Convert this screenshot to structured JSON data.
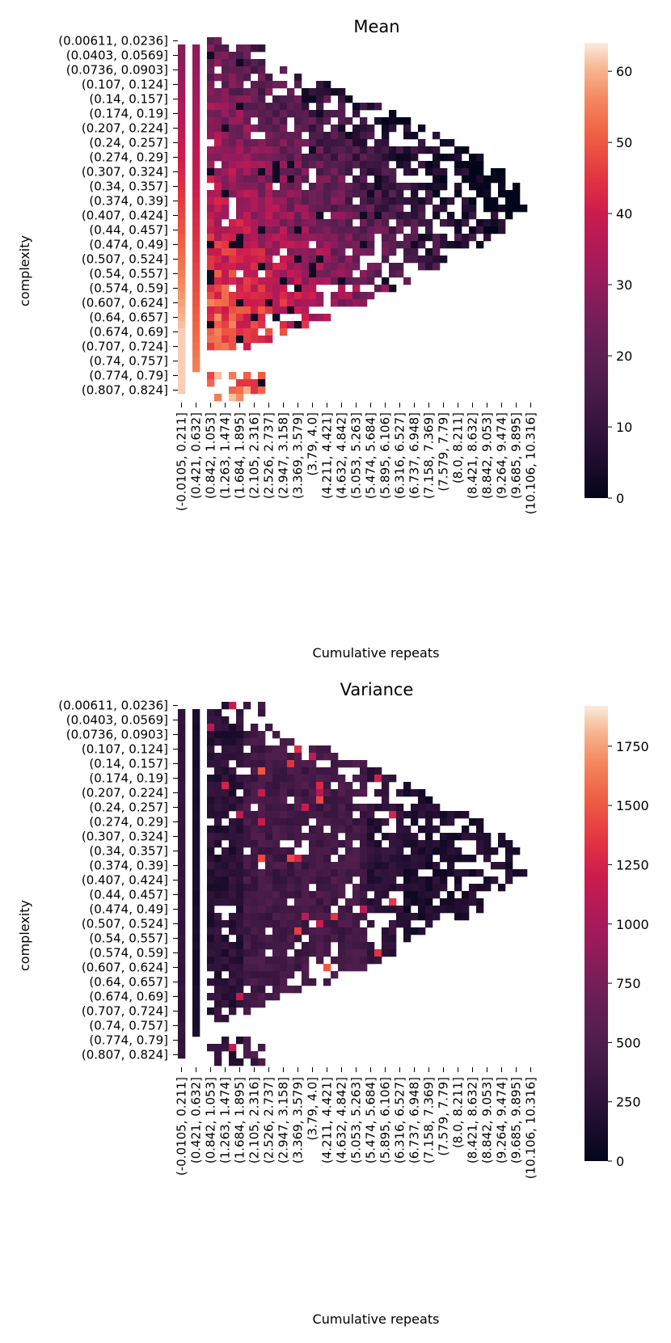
{
  "figure_caption": "",
  "chart_data": [
    {
      "type": "heatmap",
      "title": "Mean",
      "xlabel": "Cumulative repeats",
      "ylabel": "complexity",
      "colorbar": {
        "min": 0,
        "max": 64,
        "ticks": [
          0,
          10,
          20,
          30,
          40,
          50,
          60
        ],
        "colormap": "rocket"
      },
      "y_tick_labels": [
        "(0.00611, 0.0236]",
        "(0.0403, 0.0569]",
        "(0.0736, 0.0903]",
        "(0.107, 0.124]",
        "(0.14, 0.157]",
        "(0.174, 0.19]",
        "(0.207, 0.224]",
        "(0.24, 0.257]",
        "(0.274, 0.29]",
        "(0.307, 0.324]",
        "(0.34, 0.357]",
        "(0.374, 0.39]",
        "(0.407, 0.424]",
        "(0.44, 0.457]",
        "(0.474, 0.49]",
        "(0.507, 0.524]",
        "(0.54, 0.557]",
        "(0.574, 0.59]",
        "(0.607, 0.624]",
        "(0.64, 0.657]",
        "(0.674, 0.69]",
        "(0.707, 0.724]",
        "(0.74, 0.757]",
        "(0.774, 0.79]",
        "(0.807, 0.824]"
      ],
      "x_tick_labels": [
        "(-0.0105, 0.211]",
        "(0.421, 0.632]",
        "(0.842, 1.053]",
        "(1.263, 1.474]",
        "(1.684, 1.895]",
        "(2.105, 2.316]",
        "(2.526, 2.737]",
        "(2.947, 3.158]",
        "(3.369, 3.579]",
        "(3.79, 4.0]",
        "(4.211, 4.421]",
        "(4.632, 4.842]",
        "(5.053, 5.263]",
        "(5.474, 5.684]",
        "(5.895, 6.106]",
        "(6.316, 6.527]",
        "(6.737, 6.948]",
        "(7.158, 7.369]",
        "(7.579, 7.79]",
        "(8.0, 8.211]",
        "(8.421, 8.632]",
        "(8.842, 9.053]",
        "(9.264, 9.474]",
        "(9.685, 9.895]",
        "(10.106, 10.316]"
      ],
      "n_rows": 50,
      "n_cols": 50,
      "cell_value_description": "approximate mean per complexity/repeat bin; peak ~60 at high complexity and low repeats"
    },
    {
      "type": "heatmap",
      "title": "Variance",
      "xlabel": "Cumulative repeats",
      "ylabel": "complexity",
      "colorbar": {
        "min": 0,
        "max": 1920,
        "ticks": [
          0,
          250,
          500,
          750,
          1000,
          1250,
          1500,
          1750
        ],
        "colormap": "rocket"
      },
      "y_tick_labels": [
        "(0.00611, 0.0236]",
        "(0.0403, 0.0569]",
        "(0.0736, 0.0903]",
        "(0.107, 0.124]",
        "(0.14, 0.157]",
        "(0.174, 0.19]",
        "(0.207, 0.224]",
        "(0.24, 0.257]",
        "(0.274, 0.29]",
        "(0.307, 0.324]",
        "(0.34, 0.357]",
        "(0.374, 0.39]",
        "(0.407, 0.424]",
        "(0.44, 0.457]",
        "(0.474, 0.49]",
        "(0.507, 0.524]",
        "(0.54, 0.557]",
        "(0.574, 0.59]",
        "(0.607, 0.624]",
        "(0.64, 0.657]",
        "(0.674, 0.69]",
        "(0.707, 0.724]",
        "(0.74, 0.757]",
        "(0.774, 0.79]",
        "(0.807, 0.824]"
      ],
      "x_tick_labels": [
        "(-0.0105, 0.211]",
        "(0.421, 0.632]",
        "(0.842, 1.053]",
        "(1.263, 1.474]",
        "(1.684, 1.895]",
        "(2.105, 2.316]",
        "(2.526, 2.737]",
        "(2.947, 3.158]",
        "(3.369, 3.579]",
        "(3.79, 4.0]",
        "(4.211, 4.421]",
        "(4.632, 4.842]",
        "(5.053, 5.263]",
        "(5.474, 5.684]",
        "(5.895, 6.106]",
        "(6.316, 6.527]",
        "(6.737, 6.948]",
        "(7.158, 7.369]",
        "(7.579, 7.79]",
        "(8.0, 8.211]",
        "(8.421, 8.632]",
        "(8.842, 9.053]",
        "(9.264, 9.474]",
        "(9.685, 9.895]",
        "(10.106, 10.316]"
      ],
      "n_rows": 50,
      "n_cols": 50,
      "cell_value_description": "approximate variance per bin; mostly 100-600 with sparse peaks ~1000-1500 at repeats 4-6"
    }
  ]
}
